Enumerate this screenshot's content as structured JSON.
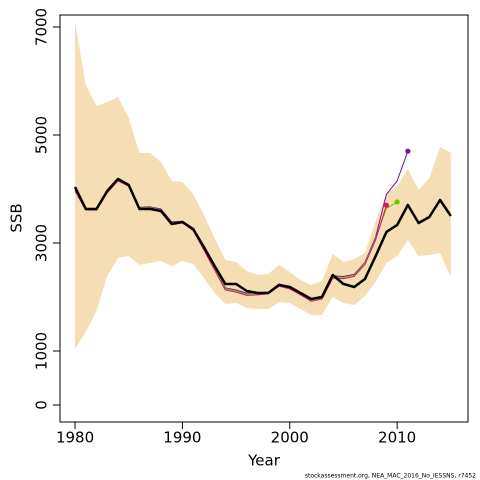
{
  "chart_data": {
    "type": "line",
    "x_label": "Year",
    "y_label": "SSB",
    "footnote": "stockassessment.org, NEA_MAC_2016_No_IESSNS, r7452",
    "x": [
      1980,
      1981,
      1982,
      1983,
      1984,
      1985,
      1986,
      1987,
      1988,
      1989,
      1990,
      1991,
      1992,
      1993,
      1994,
      1995,
      1996,
      1997,
      1998,
      1999,
      2000,
      2001,
      2002,
      2003,
      2004,
      2005,
      2006,
      2007,
      2008,
      2009,
      2010,
      2011,
      2012,
      2013,
      2014,
      2015
    ],
    "xlim": [
      1978.6,
      2016.6
    ],
    "xticks": [
      1980,
      1990,
      2000,
      2010
    ],
    "ylim": [
      -315,
      7222
    ],
    "yticks": [
      0,
      1000,
      3000,
      5000,
      7000
    ],
    "band": {
      "color": "#f5deb3",
      "upper": [
        7093,
        5926,
        5537,
        5611,
        5704,
        5315,
        4667,
        4667,
        4500,
        4148,
        4130,
        3907,
        3519,
        3093,
        2685,
        2648,
        2481,
        2407,
        2426,
        2593,
        2463,
        2315,
        2222,
        2296,
        2796,
        2648,
        2704,
        2815,
        3407,
        3907,
        4056,
        4370,
        3981,
        4204,
        4778,
        4667
      ],
      "lower": [
        1037,
        1352,
        1741,
        2389,
        2722,
        2759,
        2593,
        2630,
        2667,
        2574,
        2667,
        2611,
        2352,
        2074,
        1870,
        1889,
        1796,
        1778,
        1778,
        1907,
        1889,
        1778,
        1667,
        1667,
        2000,
        1889,
        1852,
        2019,
        2278,
        2630,
        2759,
        3056,
        2759,
        2778,
        2815,
        2370
      ]
    },
    "series": [
      {
        "color": "#7a0aa0",
        "width": 1,
        "end_marker": true,
        "values": [
          3980,
          3630,
          3630,
          3950,
          4170,
          4070,
          3660,
          3670,
          3630,
          3390,
          3400,
          3250,
          2900,
          2540,
          2170,
          2130,
          2070,
          2080,
          2090,
          2240,
          2190,
          2080,
          1960,
          2000,
          2390,
          2380,
          2420,
          2640,
          3110,
          3900,
          4150,
          4700,
          null,
          null,
          null,
          null
        ]
      },
      {
        "color": "#66cc00",
        "width": 1,
        "end_marker": true,
        "values": [
          3970,
          3620,
          3620,
          3940,
          4160,
          4060,
          3650,
          3660,
          3610,
          3370,
          3380,
          3240,
          2880,
          2520,
          2150,
          2110,
          2050,
          2060,
          2070,
          2220,
          2170,
          2060,
          1940,
          1980,
          2370,
          2360,
          2400,
          2620,
          3080,
          3640,
          3760,
          null,
          null,
          null,
          null,
          null
        ]
      },
      {
        "color": "#e0106e",
        "width": 1,
        "end_marker": true,
        "values": [
          3960,
          3610,
          3610,
          3930,
          4150,
          4050,
          3640,
          3650,
          3600,
          3360,
          3370,
          3230,
          2870,
          2500,
          2130,
          2090,
          2030,
          2040,
          2060,
          2200,
          2150,
          2040,
          1920,
          1960,
          2350,
          2340,
          2380,
          2600,
          3060,
          3700,
          null,
          null,
          null,
          null,
          null,
          null
        ]
      },
      {
        "color": "#000000",
        "width": 2.5,
        "end_marker": false,
        "values": [
          4037,
          3630,
          3630,
          3963,
          4185,
          4074,
          3630,
          3630,
          3593,
          3352,
          3389,
          3259,
          2926,
          2574,
          2241,
          2241,
          2111,
          2074,
          2074,
          2222,
          2185,
          2074,
          1963,
          2000,
          2407,
          2241,
          2185,
          2333,
          2759,
          3204,
          3333,
          3704,
          3370,
          3481,
          3796,
          3500
        ]
      }
    ]
  }
}
